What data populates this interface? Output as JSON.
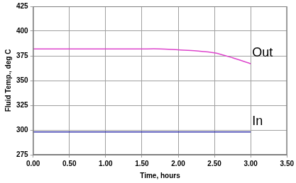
{
  "chart_data": {
    "type": "line",
    "x_label": "Time, hours",
    "y_label": "Fluid Temp., deg C",
    "x": [
      0,
      0.5,
      1.0,
      1.5,
      1.75,
      2.0,
      2.25,
      2.5,
      2.75,
      3.0
    ],
    "series": [
      {
        "name": "Out",
        "color": "#dd44cc",
        "marker": "none",
        "line_style": "solid",
        "values": [
          382,
          382,
          382,
          382,
          382,
          381,
          380,
          378,
          373,
          367
        ]
      },
      {
        "name": "In",
        "color": "#3333aa",
        "marker": "none",
        "line_style": "solid",
        "values": [
          298,
          298,
          298,
          298,
          298,
          298,
          298,
          298,
          298,
          298
        ]
      }
    ],
    "xlim": [
      0,
      3.5
    ],
    "xticks": [
      {
        "value": 0,
        "label": "0.00"
      },
      {
        "value": 0.5,
        "label": "0.50"
      },
      {
        "value": 1.0,
        "label": "1.00"
      },
      {
        "value": 1.5,
        "label": "1.50"
      },
      {
        "value": 2.0,
        "label": "2.00"
      },
      {
        "value": 2.5,
        "label": "2.50"
      },
      {
        "value": 3.0,
        "label": "3.00"
      },
      {
        "value": 3.5,
        "label": "3.50"
      }
    ],
    "ylim": [
      275,
      425
    ],
    "yticks": [
      275,
      300,
      325,
      350,
      375,
      400,
      425
    ],
    "grid": true
  }
}
